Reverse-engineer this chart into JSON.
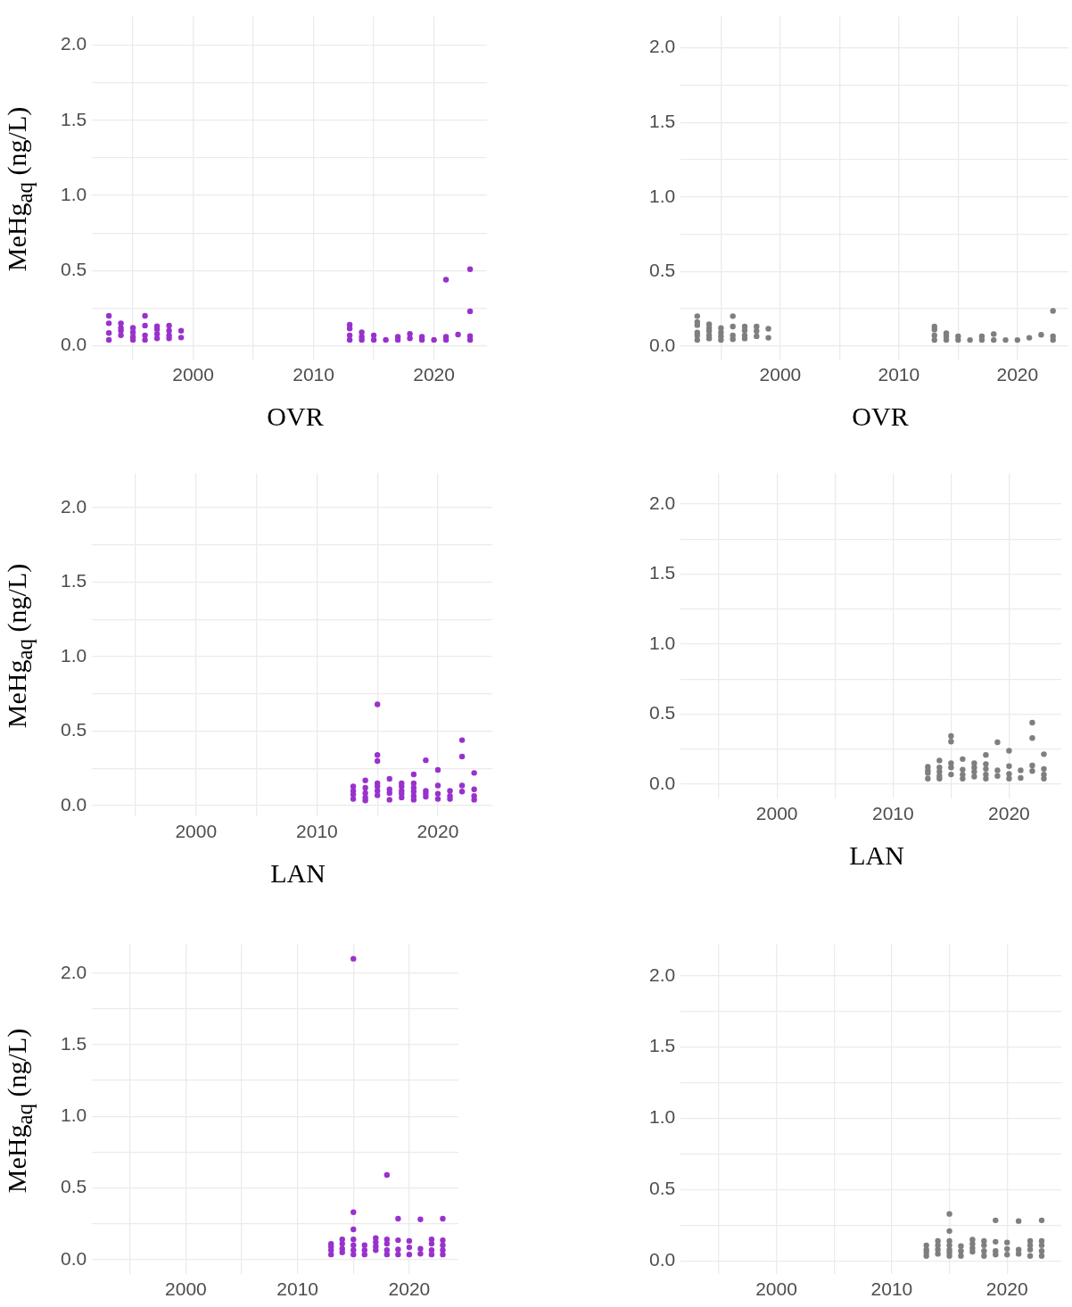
{
  "chart_data": [
    {
      "type": "scatter",
      "xlabel": "OVR",
      "ylabel": "MeHg$_{aq}$ (ng/L)",
      "xlim": [
        1991.6,
        2024.4
      ],
      "ylim": [
        -0.09,
        2.19
      ],
      "grid": true,
      "marker": "circle",
      "xticks": [
        {
          "value": 1995,
          "label": null
        },
        2000,
        {
          "value": 2005,
          "label": null
        },
        2010,
        {
          "value": 2015,
          "label": null
        },
        2020
      ],
      "yticks": [
        {
          "value": 0,
          "label": "0.0"
        },
        {
          "value": 0.25,
          "label": null
        },
        {
          "value": 0.5,
          "label": "0.5"
        },
        {
          "value": 0.75,
          "label": null
        },
        {
          "value": 1,
          "label": "1.0"
        },
        {
          "value": 1.25,
          "label": null
        },
        {
          "value": 1.5,
          "label": "1.5"
        },
        {
          "value": 1.75,
          "label": null
        },
        {
          "value": 2,
          "label": "2.0"
        }
      ],
      "series": [
        {
          "color": "#9932cc",
          "x": [
            1993,
            1993,
            1993,
            1993,
            1994,
            1994,
            1994,
            1994,
            1995,
            1995,
            1995,
            1995,
            1996,
            1996,
            1996,
            1996,
            1997,
            1997,
            1997,
            1997,
            1998,
            1998,
            1998,
            1998,
            1999,
            1999,
            2013,
            2013,
            2013,
            2013,
            2014,
            2014,
            2014,
            2015,
            2015,
            2016,
            2017,
            2017,
            2018,
            2018,
            2019,
            2019,
            2020,
            2021,
            2021,
            2021,
            2022,
            2023,
            2023,
            2023,
            2023
          ],
          "values": [
            0.2,
            0.15,
            0.085,
            0.04,
            0.15,
            0.12,
            0.1,
            0.07,
            0.12,
            0.09,
            0.06,
            0.04,
            0.2,
            0.135,
            0.07,
            0.04,
            0.13,
            0.11,
            0.08,
            0.05,
            0.135,
            0.1,
            0.07,
            0.05,
            0.1,
            0.055,
            0.14,
            0.115,
            0.07,
            0.04,
            0.09,
            0.06,
            0.04,
            0.07,
            0.04,
            0.04,
            0.06,
            0.04,
            0.08,
            0.05,
            0.06,
            0.04,
            0.04,
            0.44,
            0.06,
            0.04,
            0.075,
            0.51,
            0.23,
            0.065,
            0.04
          ]
        }
      ]
    },
    {
      "type": "scatter",
      "xlabel": "OVR",
      "xlim": [
        1991.6,
        2024.3
      ],
      "ylim": [
        -0.09,
        2.21
      ],
      "grid": true,
      "marker": "circle",
      "xticks": [
        {
          "value": 1995,
          "label": null
        },
        2000,
        {
          "value": 2005,
          "label": null
        },
        2010,
        {
          "value": 2015,
          "label": null
        },
        2020
      ],
      "yticks": [
        {
          "value": 0,
          "label": "0.0"
        },
        {
          "value": 0.25,
          "label": null
        },
        {
          "value": 0.5,
          "label": "0.5"
        },
        {
          "value": 0.75,
          "label": null
        },
        {
          "value": 1,
          "label": "1.0"
        },
        {
          "value": 1.25,
          "label": null
        },
        {
          "value": 1.5,
          "label": "1.5"
        },
        {
          "value": 1.75,
          "label": null
        },
        {
          "value": 2,
          "label": "2.0"
        }
      ],
      "series": [
        {
          "color": "#7f7f7f",
          "x": [
            1993,
            1993,
            1993,
            1993,
            1993,
            1993,
            1994,
            1994,
            1994,
            1994,
            1994,
            1995,
            1995,
            1995,
            1995,
            1996,
            1996,
            1996,
            1996,
            1997,
            1997,
            1997,
            1997,
            1998,
            1998,
            1998,
            1999,
            1999,
            2013,
            2013,
            2013,
            2013,
            2014,
            2014,
            2014,
            2015,
            2015,
            2016,
            2017,
            2017,
            2018,
            2018,
            2019,
            2020,
            2021,
            2022,
            2023,
            2023,
            2023
          ],
          "values": [
            0.2,
            0.16,
            0.14,
            0.09,
            0.07,
            0.04,
            0.145,
            0.12,
            0.1,
            0.07,
            0.05,
            0.12,
            0.09,
            0.065,
            0.04,
            0.2,
            0.13,
            0.07,
            0.045,
            0.13,
            0.105,
            0.07,
            0.05,
            0.13,
            0.1,
            0.065,
            0.115,
            0.055,
            0.13,
            0.11,
            0.07,
            0.04,
            0.085,
            0.065,
            0.04,
            0.065,
            0.04,
            0.04,
            0.065,
            0.04,
            0.08,
            0.04,
            0.04,
            0.04,
            0.055,
            0.075,
            0.235,
            0.065,
            0.04
          ]
        }
      ]
    },
    {
      "type": "scatter",
      "xlabel": "LAN",
      "ylabel": "MeHg$_{aq}$ (ng/L)",
      "xlim": [
        1991.4,
        2024.5
      ],
      "ylim": [
        -0.07,
        2.23
      ],
      "grid": true,
      "marker": "circle",
      "xticks": [
        {
          "value": 1995,
          "label": null
        },
        2000,
        {
          "value": 2005,
          "label": null
        },
        2010,
        {
          "value": 2015,
          "label": null
        },
        2020
      ],
      "yticks": [
        {
          "value": 0,
          "label": "0.0"
        },
        {
          "value": 0.25,
          "label": null
        },
        {
          "value": 0.5,
          "label": "0.5"
        },
        {
          "value": 0.75,
          "label": null
        },
        {
          "value": 1,
          "label": "1.0"
        },
        {
          "value": 1.25,
          "label": null
        },
        {
          "value": 1.5,
          "label": "1.5"
        },
        {
          "value": 1.75,
          "label": null
        },
        {
          "value": 2,
          "label": "2.0"
        }
      ],
      "series": [
        {
          "color": "#9932cc",
          "x": [
            2013,
            2013,
            2013,
            2013,
            2014,
            2014,
            2014,
            2014,
            2014,
            2015,
            2015,
            2015,
            2015,
            2015,
            2015,
            2015,
            2016,
            2016,
            2016,
            2016,
            2017,
            2017,
            2017,
            2017,
            2017,
            2018,
            2018,
            2018,
            2018,
            2018,
            2018,
            2019,
            2019,
            2019,
            2019,
            2020,
            2020,
            2020,
            2020,
            2021,
            2021,
            2021,
            2022,
            2022,
            2022,
            2022,
            2023,
            2023,
            2023,
            2023
          ],
          "values": [
            0.13,
            0.1,
            0.075,
            0.045,
            0.17,
            0.12,
            0.085,
            0.055,
            0.035,
            0.68,
            0.34,
            0.3,
            0.15,
            0.13,
            0.1,
            0.07,
            0.18,
            0.11,
            0.085,
            0.04,
            0.15,
            0.13,
            0.1,
            0.08,
            0.055,
            0.21,
            0.15,
            0.12,
            0.095,
            0.065,
            0.04,
            0.305,
            0.1,
            0.08,
            0.06,
            0.24,
            0.135,
            0.08,
            0.045,
            0.1,
            0.065,
            0.045,
            0.44,
            0.33,
            0.135,
            0.095,
            0.22,
            0.11,
            0.065,
            0.04
          ]
        }
      ]
    },
    {
      "type": "scatter",
      "xlabel": "LAN",
      "xlim": [
        1991.7,
        2024.5
      ],
      "ylim": [
        -0.1,
        2.22
      ],
      "grid": true,
      "marker": "circle",
      "xticks": [
        {
          "value": 1995,
          "label": null
        },
        2000,
        {
          "value": 2005,
          "label": null
        },
        2010,
        {
          "value": 2015,
          "label": null
        },
        2020
      ],
      "yticks": [
        {
          "value": 0,
          "label": "0.0"
        },
        {
          "value": 0.25,
          "label": null
        },
        {
          "value": 0.5,
          "label": "0.5"
        },
        {
          "value": 0.75,
          "label": null
        },
        {
          "value": 1,
          "label": "1.0"
        },
        {
          "value": 1.25,
          "label": null
        },
        {
          "value": 1.5,
          "label": "1.5"
        },
        {
          "value": 1.75,
          "label": null
        },
        {
          "value": 2,
          "label": "2.0"
        }
      ],
      "series": [
        {
          "color": "#7f7f7f",
          "x": [
            2013,
            2013,
            2013,
            2013,
            2014,
            2014,
            2014,
            2014,
            2014,
            2015,
            2015,
            2015,
            2015,
            2015,
            2016,
            2016,
            2016,
            2016,
            2017,
            2017,
            2017,
            2017,
            2018,
            2018,
            2018,
            2018,
            2018,
            2019,
            2019,
            2019,
            2020,
            2020,
            2020,
            2020,
            2021,
            2021,
            2022,
            2022,
            2022,
            2022,
            2023,
            2023,
            2023,
            2023
          ],
          "values": [
            0.125,
            0.1,
            0.08,
            0.04,
            0.17,
            0.12,
            0.09,
            0.06,
            0.04,
            0.345,
            0.305,
            0.15,
            0.12,
            0.07,
            0.18,
            0.105,
            0.07,
            0.04,
            0.15,
            0.12,
            0.09,
            0.055,
            0.21,
            0.145,
            0.11,
            0.07,
            0.04,
            0.3,
            0.1,
            0.06,
            0.24,
            0.13,
            0.075,
            0.04,
            0.1,
            0.045,
            0.44,
            0.33,
            0.135,
            0.095,
            0.215,
            0.11,
            0.07,
            0.04
          ]
        }
      ]
    },
    {
      "type": "scatter",
      "ylabel": "MeHg$_{aq}$ (ng/L)",
      "xlim": [
        1991.6,
        2024.4
      ],
      "ylim": [
        -0.1,
        2.2
      ],
      "grid": true,
      "marker": "circle",
      "xticks": [
        {
          "value": 1995,
          "label": null
        },
        2000,
        {
          "value": 2005,
          "label": null
        },
        2010,
        {
          "value": 2015,
          "label": null
        },
        2020
      ],
      "yticks": [
        {
          "value": 0,
          "label": "0.0"
        },
        {
          "value": 0.25,
          "label": null
        },
        {
          "value": 0.5,
          "label": "0.5"
        },
        {
          "value": 0.75,
          "label": null
        },
        {
          "value": 1,
          "label": "1.0"
        },
        {
          "value": 1.25,
          "label": null
        },
        {
          "value": 1.5,
          "label": "1.5"
        },
        {
          "value": 1.75,
          "label": null
        },
        {
          "value": 2,
          "label": "2.0"
        }
      ],
      "series": [
        {
          "color": "#9932cc",
          "x": [
            2013,
            2013,
            2013,
            2013,
            2014,
            2014,
            2014,
            2014,
            2015,
            2015,
            2015,
            2015,
            2015,
            2015,
            2015,
            2016,
            2016,
            2016,
            2017,
            2017,
            2017,
            2017,
            2018,
            2018,
            2018,
            2018,
            2018,
            2019,
            2019,
            2019,
            2019,
            2020,
            2020,
            2020,
            2021,
            2021,
            2021,
            2022,
            2022,
            2022,
            2022,
            2023,
            2023,
            2023,
            2023,
            2023
          ],
          "values": [
            0.11,
            0.09,
            0.065,
            0.035,
            0.14,
            0.11,
            0.075,
            0.05,
            2.1,
            0.33,
            0.21,
            0.14,
            0.1,
            0.065,
            0.035,
            0.1,
            0.065,
            0.035,
            0.15,
            0.12,
            0.09,
            0.065,
            0.59,
            0.14,
            0.11,
            0.065,
            0.035,
            0.285,
            0.135,
            0.07,
            0.035,
            0.13,
            0.085,
            0.035,
            0.28,
            0.075,
            0.04,
            0.14,
            0.11,
            0.065,
            0.035,
            0.285,
            0.135,
            0.1,
            0.065,
            0.035
          ]
        }
      ]
    },
    {
      "type": "scatter",
      "xlim": [
        1991.7,
        2024.7
      ],
      "ylim": [
        -0.09,
        2.22
      ],
      "grid": true,
      "marker": "circle",
      "xticks": [
        {
          "value": 1995,
          "label": null
        },
        2000,
        {
          "value": 2005,
          "label": null
        },
        2010,
        {
          "value": 2015,
          "label": null
        },
        2020
      ],
      "yticks": [
        {
          "value": 0,
          "label": "0.0"
        },
        {
          "value": 0.25,
          "label": null
        },
        {
          "value": 0.5,
          "label": "0.5"
        },
        {
          "value": 0.75,
          "label": null
        },
        {
          "value": 1,
          "label": "1.0"
        },
        {
          "value": 1.25,
          "label": null
        },
        {
          "value": 1.5,
          "label": "1.5"
        },
        {
          "value": 1.75,
          "label": null
        },
        {
          "value": 2,
          "label": "2.0"
        }
      ],
      "series": [
        {
          "color": "#7f7f7f",
          "x": [
            2013,
            2013,
            2013,
            2013,
            2014,
            2014,
            2014,
            2014,
            2015,
            2015,
            2015,
            2015,
            2015,
            2015,
            2015,
            2016,
            2016,
            2016,
            2017,
            2017,
            2017,
            2017,
            2018,
            2018,
            2018,
            2018,
            2019,
            2019,
            2019,
            2019,
            2020,
            2020,
            2020,
            2021,
            2021,
            2021,
            2022,
            2022,
            2022,
            2022,
            2023,
            2023,
            2023,
            2023,
            2023
          ],
          "values": [
            0.11,
            0.08,
            0.06,
            0.035,
            0.14,
            0.11,
            0.08,
            0.05,
            0.33,
            0.21,
            0.14,
            0.11,
            0.08,
            0.06,
            0.035,
            0.105,
            0.07,
            0.035,
            0.15,
            0.12,
            0.09,
            0.065,
            0.14,
            0.11,
            0.07,
            0.035,
            0.285,
            0.135,
            0.07,
            0.045,
            0.13,
            0.085,
            0.045,
            0.28,
            0.08,
            0.05,
            0.14,
            0.11,
            0.08,
            0.035,
            0.285,
            0.14,
            0.11,
            0.07,
            0.035
          ]
        }
      ]
    }
  ]
}
